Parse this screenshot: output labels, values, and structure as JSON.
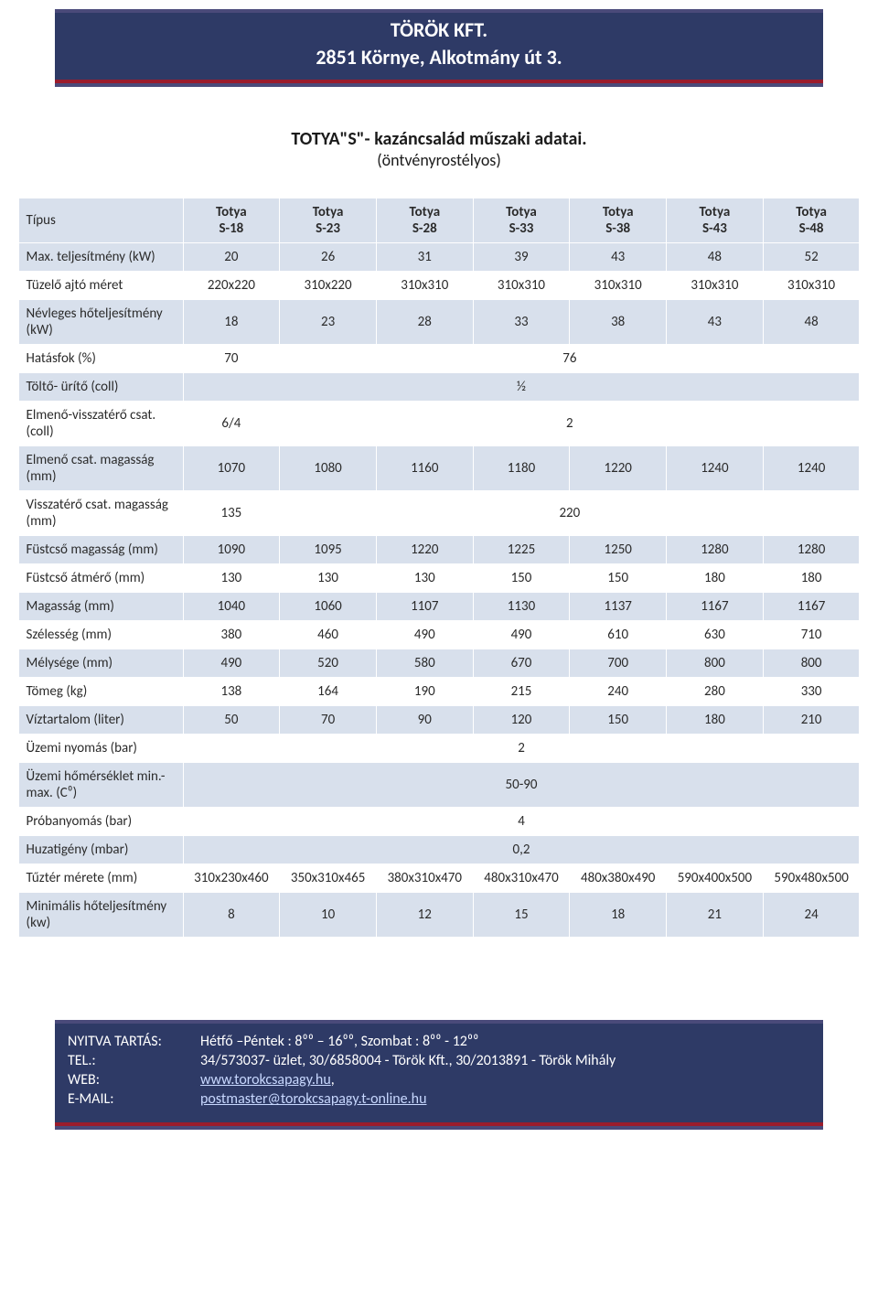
{
  "header": {
    "company": "TÖRÖK KFT.",
    "address": "2851 Környe, Alkotmány út 3."
  },
  "title": "TOTYA\"S\"- kazáncsalád műszaki adatai.",
  "subtitle": "(öntvényrostélyos)",
  "colors": {
    "banner_bg": "#2e3a66",
    "hr_dark": "#4a4a7a",
    "hr_red": "#9b1c2c",
    "row_band": "#d8e0ec",
    "row_white": "#ffffff",
    "link": "#c8d8ff",
    "text": "#2b2b2b"
  },
  "table": {
    "type_label": "Típus",
    "columns": [
      "Totya S-18",
      "Totya S-23",
      "Totya S-28",
      "Totya S-33",
      "Totya S-38",
      "Totya S-43",
      "Totya S-48"
    ],
    "rows": [
      {
        "label": "Max. teljesítmény (kW)",
        "band": true,
        "cells": [
          "20",
          "26",
          "31",
          "39",
          "43",
          "48",
          "52"
        ]
      },
      {
        "label": "Tüzelő ajtó méret",
        "band": false,
        "cells": [
          "220x220",
          "310x220",
          "310x310",
          "310x310",
          "310x310",
          "310x310",
          "310x310"
        ]
      },
      {
        "label": "Névleges hőteljesítmény (kW)",
        "band": true,
        "cells": [
          "18",
          "23",
          "28",
          "33",
          "38",
          "43",
          "48"
        ]
      },
      {
        "label": "Hatásfok (%)",
        "band": false,
        "cells": [
          {
            "text": "70",
            "span": 1
          },
          {
            "text": "76",
            "span": 6
          }
        ]
      },
      {
        "label": "Töltő- ürítő (coll)",
        "band": true,
        "cells": [
          {
            "text": "½",
            "span": 7
          }
        ]
      },
      {
        "label": "Elmenő-visszatérő csat. (coll)",
        "band": false,
        "cells": [
          {
            "text": "6/4",
            "span": 1
          },
          {
            "text": "2",
            "span": 6
          }
        ]
      },
      {
        "label": "Elmenő csat. magasság (mm)",
        "band": true,
        "cells": [
          "1070",
          "1080",
          "1160",
          "1180",
          "1220",
          "1240",
          "1240"
        ]
      },
      {
        "label": "Visszatérő csat. magasság (mm)",
        "band": false,
        "cells": [
          {
            "text": "135",
            "span": 1
          },
          {
            "text": "220",
            "span": 6
          }
        ]
      },
      {
        "label": "Füstcső magasság (mm)",
        "band": true,
        "cells": [
          "1090",
          "1095",
          "1220",
          "1225",
          "1250",
          "1280",
          "1280"
        ]
      },
      {
        "label": "Füstcső átmérő (mm)",
        "band": false,
        "cells": [
          "130",
          "130",
          "130",
          "150",
          "150",
          "180",
          "180"
        ]
      },
      {
        "label": "Magasság (mm)",
        "band": true,
        "cells": [
          "1040",
          "1060",
          "1107",
          "1130",
          "1137",
          "1167",
          "1167"
        ]
      },
      {
        "label": "Szélesség (mm)",
        "band": false,
        "cells": [
          "380",
          "460",
          "490",
          "490",
          "610",
          "630",
          "710"
        ]
      },
      {
        "label": "Mélysége (mm)",
        "band": true,
        "cells": [
          "490",
          "520",
          "580",
          "670",
          "700",
          "800",
          "800"
        ]
      },
      {
        "label": "Tömeg (kg)",
        "band": false,
        "cells": [
          "138",
          "164",
          "190",
          "215",
          "240",
          "280",
          "330"
        ]
      },
      {
        "label": "Víztartalom (liter)",
        "band": true,
        "cells": [
          "50",
          "70",
          "90",
          "120",
          "150",
          "180",
          "210"
        ]
      },
      {
        "label": "Üzemi nyomás (bar)",
        "band": false,
        "cells": [
          {
            "text": "2",
            "span": 7
          }
        ]
      },
      {
        "label": "Üzemi hőmérséklet min.-max. (C⁰)",
        "band": true,
        "cells": [
          {
            "text": "50-90",
            "span": 7
          }
        ]
      },
      {
        "label": "Próbanyomás (bar)",
        "band": false,
        "cells": [
          {
            "text": "4",
            "span": 7
          }
        ]
      },
      {
        "label": "Huzatigény (mbar)",
        "band": true,
        "cells": [
          {
            "text": "0,2",
            "span": 7
          }
        ]
      },
      {
        "label": "Tűztér mérete (mm)",
        "band": false,
        "cells": [
          "310x230x460",
          "350x310x465",
          "380x310x470",
          "480x310x470",
          "480x380x490",
          "590x400x500",
          "590x480x500"
        ]
      },
      {
        "label": "Minimális hőteljesítmény (kw)",
        "band": true,
        "cells": [
          "8",
          "10",
          "12",
          "15",
          "18",
          "21",
          "24"
        ]
      }
    ]
  },
  "footer": {
    "opening_key": "NYITVA TARTÁS:",
    "opening_val": "Hétfő –Péntek : 8⁰⁰ – 16⁰⁰, Szombat : 8⁰⁰ - 12⁰⁰",
    "tel_key": "TEL.:",
    "tel_val": "34/573037- üzlet, 30/6858004 - Török Kft., 30/2013891 - Török Mihály",
    "web_key": "WEB:",
    "web_val": "www.torokcsapagy.hu",
    "web_trail": ",",
    "email_key": "E-MAIL:",
    "email_val": "postmaster@torokcsapagy.t-online.hu"
  }
}
